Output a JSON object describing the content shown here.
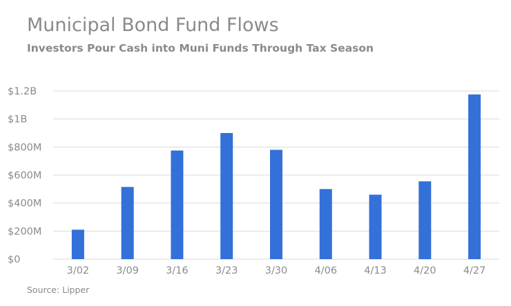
{
  "chart_data": {
    "type": "bar",
    "title": "Municipal Bond Fund Flows",
    "subtitle": "Investors Pour Cash into Muni Funds Through Tax Season",
    "source": "Source: Lipper",
    "categories": [
      "3/02",
      "3/09",
      "3/16",
      "3/23",
      "3/30",
      "4/06",
      "4/13",
      "4/20",
      "4/27"
    ],
    "values": [
      210,
      515,
      775,
      900,
      780,
      500,
      460,
      555,
      1175
    ],
    "units": "millions of dollars",
    "ylim": [
      0,
      1200
    ],
    "yticks": [
      0,
      200,
      400,
      600,
      800,
      1000,
      1200
    ],
    "ytick_labels": [
      "$0",
      "$200M",
      "$400M",
      "$600M",
      "$800M",
      "$1B",
      "$1.2B"
    ],
    "xlabel": "",
    "ylabel": "",
    "grid": true,
    "legend": "none",
    "bar_color": "#3370d8"
  }
}
